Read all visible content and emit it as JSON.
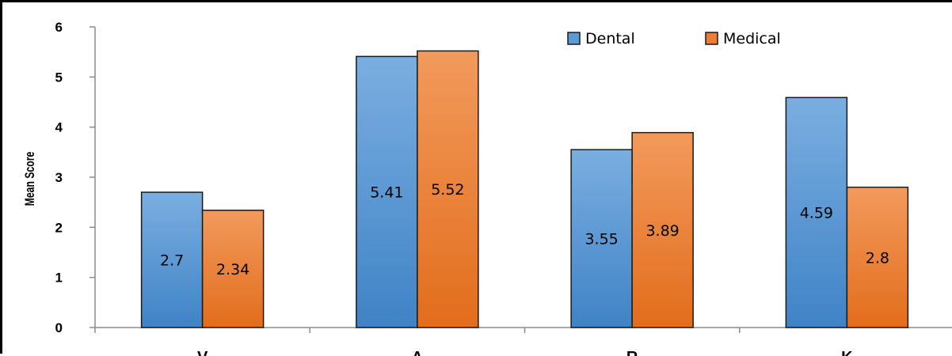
{
  "chart_data": {
    "type": "bar",
    "title": "",
    "xlabel": "",
    "ylabel": "Mean Score",
    "ylim": [
      0,
      6
    ],
    "yticks": [
      0,
      1,
      2,
      3,
      4,
      5,
      6
    ],
    "categories": [
      "V",
      "A",
      "R",
      "K"
    ],
    "series": [
      {
        "name": "Dental",
        "color": "#5b9bd5",
        "values": [
          2.7,
          5.41,
          3.55,
          4.59
        ],
        "labels": [
          "2.7",
          "5.41",
          "3.55",
          "4.59"
        ]
      },
      {
        "name": "Medical",
        "color": "#ed7d31",
        "values": [
          2.34,
          5.52,
          3.89,
          2.8
        ],
        "labels": [
          "2.34",
          "5.52",
          "3.89",
          "2.8"
        ]
      }
    ],
    "grid": false,
    "legend": "top-right"
  }
}
